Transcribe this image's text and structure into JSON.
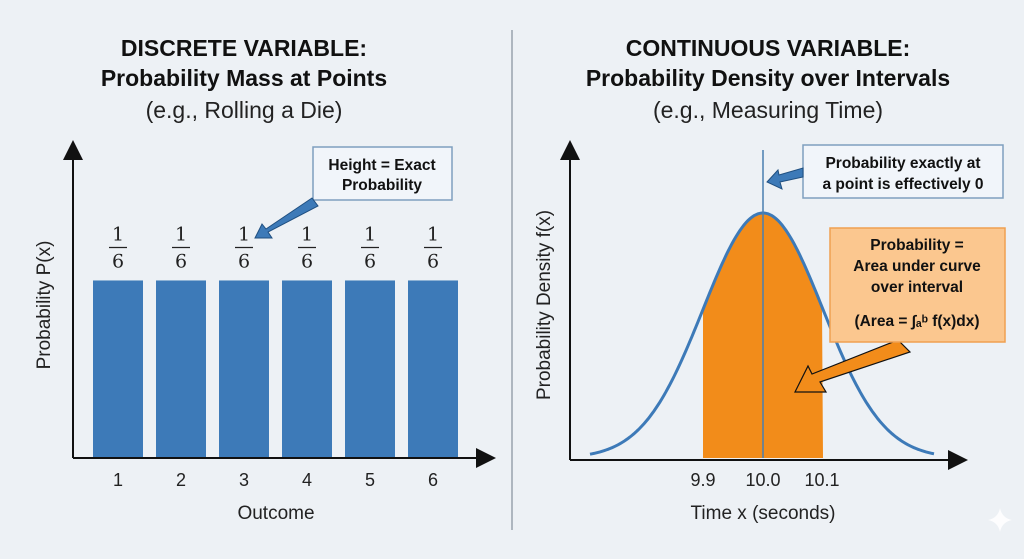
{
  "left": {
    "title1": "DISCRETE VARIABLE:",
    "title2": "Probability Mass at Points",
    "subtitle": "(e.g., Rolling a Die)",
    "callout1": "Height = Exact",
    "callout2": "Probability"
  },
  "right": {
    "title1": "CONTINUOUS VARIABLE:",
    "title2": "Probability Density over Intervals",
    "subtitle": "(e.g., Measuring Time)",
    "callout_top1": "Probability exactly at",
    "callout_top2": "a point is effectively 0",
    "callout_area1": "Probability =",
    "callout_area2": "Area under curve",
    "callout_area3": "over interval",
    "callout_area4": "(Area = ∫ₐᵇ f(x)dx)"
  },
  "chart_data": [
    {
      "type": "bar",
      "categories": [
        "1",
        "2",
        "3",
        "4",
        "5",
        "6"
      ],
      "values": [
        0.1667,
        0.1667,
        0.1667,
        0.1667,
        0.1667,
        0.1667
      ],
      "data_labels": [
        {
          "num": "1",
          "den": "6"
        },
        {
          "num": "1",
          "den": "6"
        },
        {
          "num": "1",
          "den": "6"
        },
        {
          "num": "1",
          "den": "6"
        },
        {
          "num": "1",
          "den": "6"
        },
        {
          "num": "1",
          "den": "6"
        }
      ],
      "xlabel": "Outcome",
      "ylabel": "Probability P(x)",
      "color": "#3d7ab8"
    },
    {
      "type": "area",
      "distribution": "normal",
      "mean": 10.0,
      "shaded_interval": [
        9.9,
        10.1
      ],
      "x_ticks": [
        "9.9",
        "10.0",
        "10.1"
      ],
      "xlabel": "Time x (seconds)",
      "ylabel": "Probability Density f(x)",
      "curve_color": "#3d7ab8",
      "fill_color": "#f28c1a"
    }
  ]
}
